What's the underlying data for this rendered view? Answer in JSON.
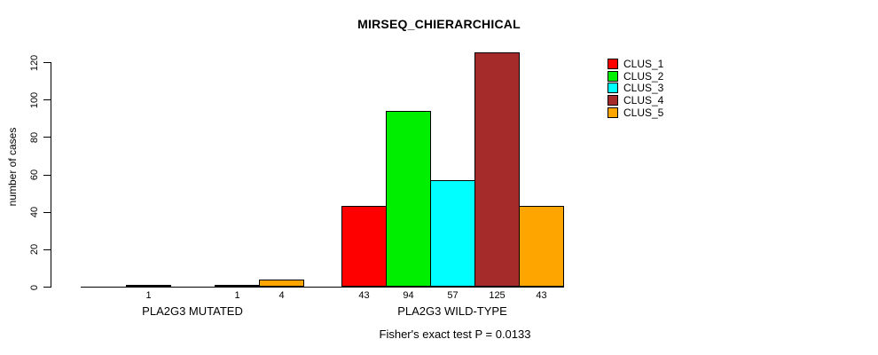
{
  "chart_data": {
    "type": "bar",
    "title": "MIRSEQ_CHIERARCHICAL",
    "ylabel": "number of cases",
    "xlabel": "",
    "yticks": [
      0,
      20,
      40,
      60,
      80,
      100,
      120
    ],
    "ylim": [
      0,
      125
    ],
    "grid": false,
    "categories": [
      "PLA2G3 MUTATED",
      "PLA2G3 WILD-TYPE"
    ],
    "series": [
      {
        "name": "CLUS_1",
        "color": "#FF0000",
        "values": [
          0,
          43
        ]
      },
      {
        "name": "CLUS_2",
        "color": "#00EE00",
        "values": [
          1,
          94
        ]
      },
      {
        "name": "CLUS_3",
        "color": "#00FFFF",
        "values": [
          0,
          57
        ]
      },
      {
        "name": "CLUS_4",
        "color": "#A52A2A",
        "values": [
          1,
          125
        ]
      },
      {
        "name": "CLUS_5",
        "color": "#FFA500",
        "values": [
          4,
          43
        ]
      }
    ],
    "bar_value_labels_shown": true,
    "legend_position": "right-outside",
    "legend_entries": [
      "CLUS_1",
      "CLUS_2",
      "CLUS_3",
      "CLUS_4",
      "CLUS_5"
    ],
    "annotation": "Fisher's exact test P = 0.0133",
    "axis_color": "#000000",
    "background_color": "#FFFFFF"
  }
}
